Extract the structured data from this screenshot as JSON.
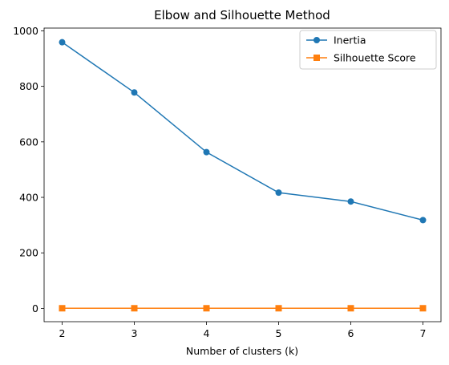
{
  "chart_data": {
    "type": "line",
    "title": "Elbow and Silhouette Method",
    "xlabel": "Number of clusters (k)",
    "ylabel": "",
    "x": [
      2,
      3,
      4,
      5,
      6,
      7
    ],
    "xlim": [
      1.75,
      7.25
    ],
    "ylim": [
      -48,
      1010
    ],
    "xticks": [
      2,
      3,
      4,
      5,
      6,
      7
    ],
    "yticks": [
      0,
      200,
      400,
      600,
      800,
      1000
    ],
    "grid": false,
    "legend_position": "top-right",
    "series": [
      {
        "name": "Inertia",
        "values": [
          959,
          778,
          563,
          417,
          385,
          318
        ],
        "color": "#1f77b4",
        "marker": "circle"
      },
      {
        "name": "Silhouette Score",
        "values": [
          0.4,
          0.4,
          0.4,
          0.4,
          0.4,
          0.4
        ],
        "color": "#ff7f0e",
        "marker": "square"
      }
    ]
  }
}
